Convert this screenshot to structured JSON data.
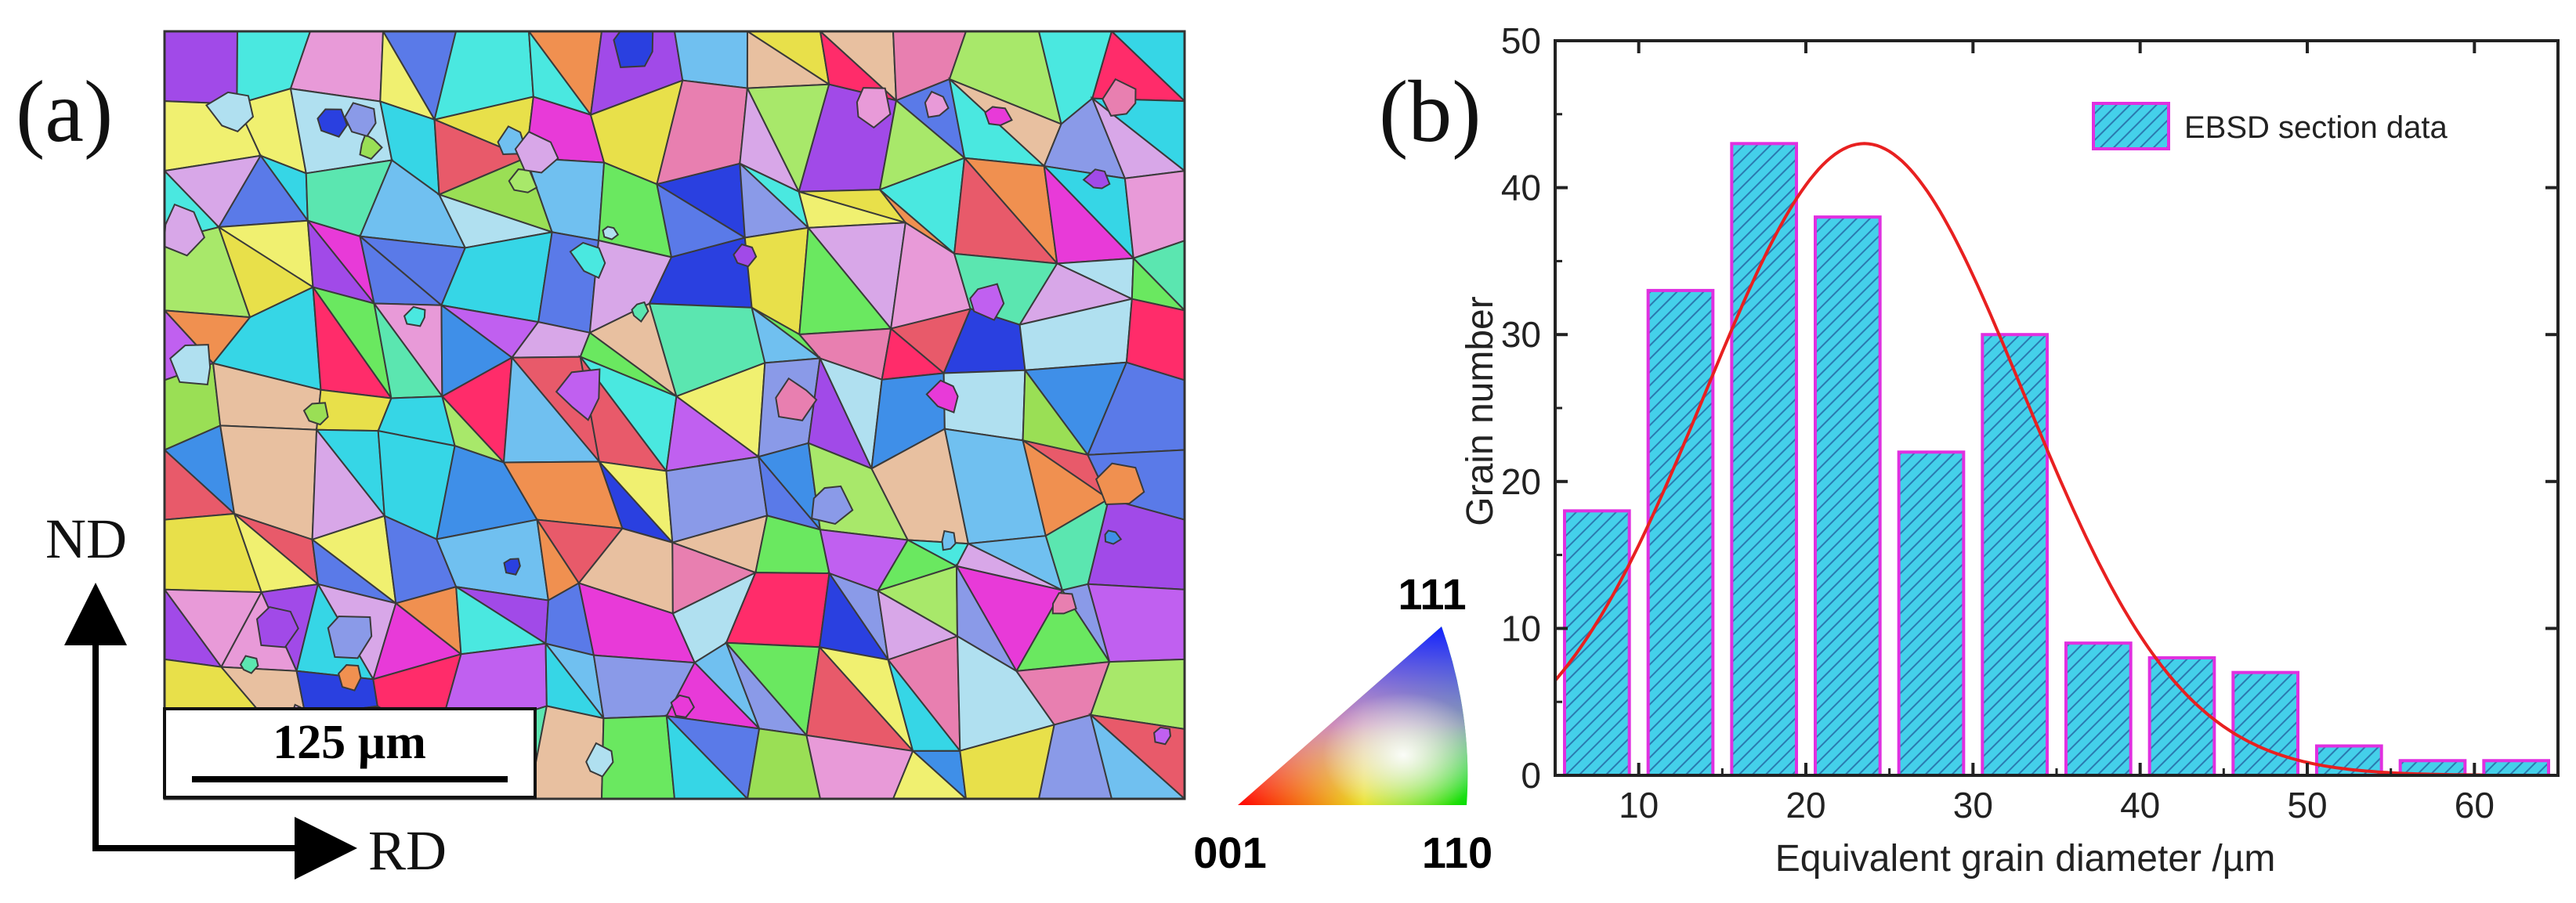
{
  "panel_a": {
    "label": "(a)",
    "scale_bar": "125 µm",
    "axis_vertical": "ND",
    "axis_horizontal": "RD",
    "ipf_key": {
      "top": "111",
      "left": "001",
      "right": "110"
    },
    "grain_colors": [
      "#3f8fe8",
      "#e83ad8",
      "#36d6e6",
      "#a14ae8",
      "#9adf55",
      "#e85a6a",
      "#e89ad8",
      "#5a7ae8",
      "#e8e04a",
      "#ff2c6a",
      "#5be6b0",
      "#d8a7e8",
      "#a8e86a",
      "#e8c0a0",
      "#4ae8e0",
      "#8a9ae8",
      "#f09050",
      "#c060f0",
      "#6ae860",
      "#e87fb0",
      "#b0e0f0",
      "#2a40e0",
      "#f0f070",
      "#70c0f0"
    ]
  },
  "chart_data": {
    "type": "bar",
    "panel_label": "(b)",
    "title": "",
    "xlabel": "Equivalent grain diameter /µm",
    "ylabel": "Grain number",
    "xlim": [
      5,
      65
    ],
    "ylim": [
      0,
      50
    ],
    "xticks": [
      10,
      20,
      30,
      40,
      50,
      60
    ],
    "yticks": [
      0,
      10,
      20,
      30,
      40,
      50
    ],
    "bin_width": 5,
    "bins": [
      7.5,
      12.5,
      17.5,
      22.5,
      27.5,
      32.5,
      37.5,
      42.5,
      47.5,
      52.5,
      57.5,
      62.5
    ],
    "values": [
      18,
      33,
      43,
      38,
      22,
      30,
      9,
      8,
      7,
      2,
      1,
      1
    ],
    "legend": {
      "label": "EBSD section data",
      "position": "top-right"
    },
    "fit": {
      "type": "gaussian",
      "peak": 43,
      "center": 23.5,
      "sigma": 9.5
    },
    "colors": {
      "bar_fill": "#44d0ea",
      "bar_edge": "#e030e0",
      "hatch": "#2a7ab0",
      "fit": "#e82020",
      "axis": "#222222"
    }
  }
}
